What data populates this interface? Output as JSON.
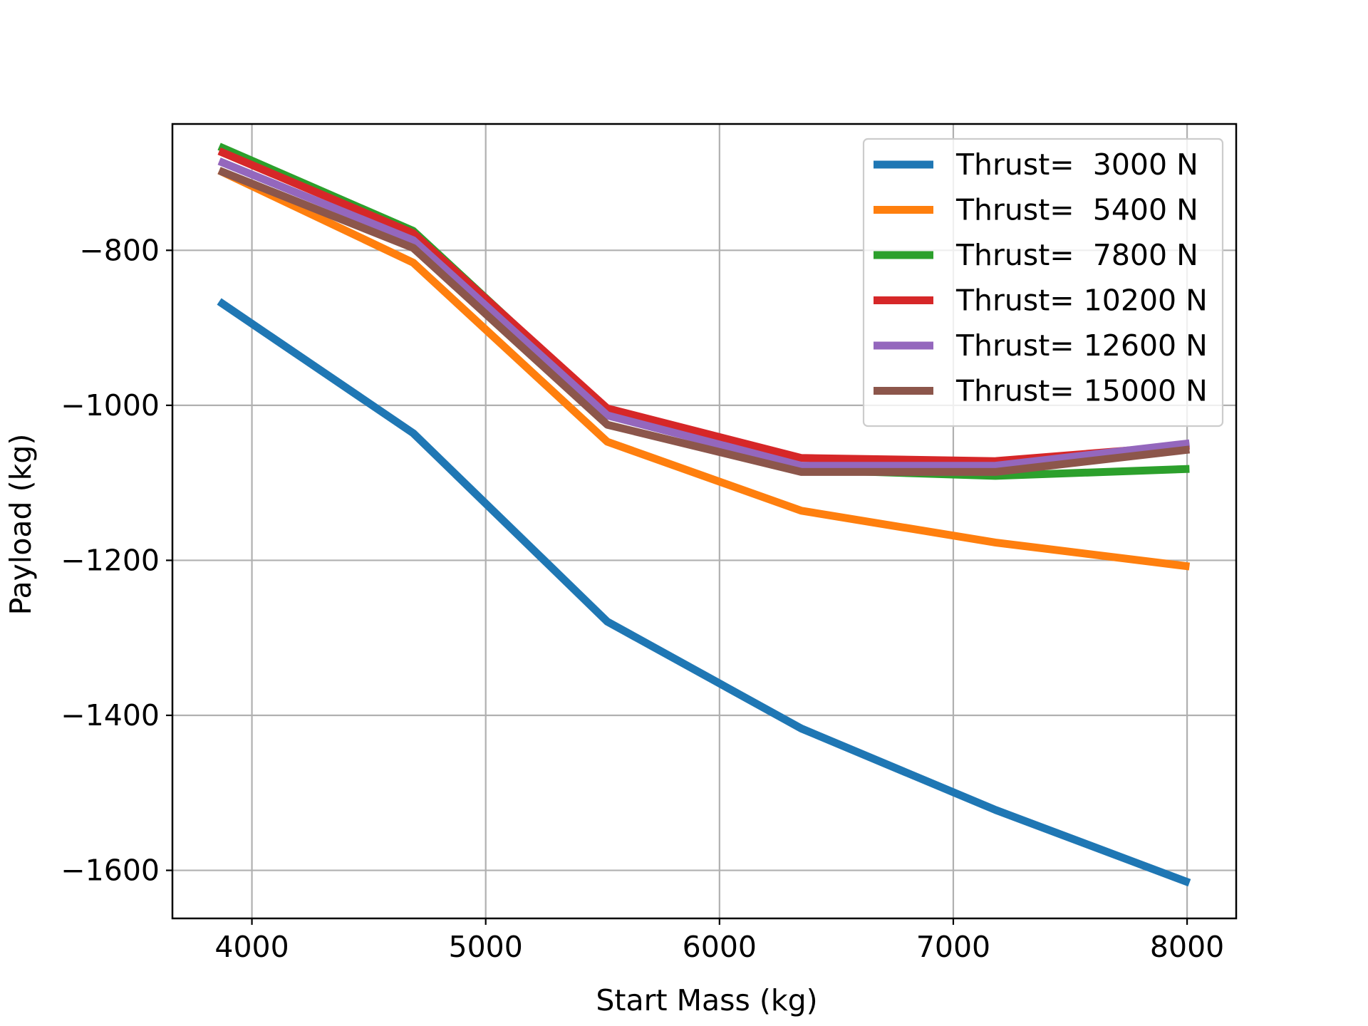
{
  "chart_data": {
    "type": "line",
    "title": "",
    "xlabel": "Start Mass (kg)",
    "ylabel": "Payload (kg)",
    "xlim": [
      3660,
      8210
    ],
    "ylim": [
      -1662,
      -637
    ],
    "xticks": [
      4000,
      5000,
      6000,
      7000,
      8000
    ],
    "yticks": [
      -800,
      -1000,
      -1200,
      -1400,
      -1600
    ],
    "ytick_labels": [
      "−800",
      "−1000",
      "−1200",
      "−1400",
      "−1600"
    ],
    "grid": true,
    "legend_position": "upper right",
    "x": [
      3860,
      4690,
      5520,
      6350,
      7180,
      8010
    ],
    "series": [
      {
        "name": "Thrust=  3000 N",
        "color": "#1f77b4",
        "values": [
          -866,
          -1036,
          -1279,
          -1417,
          -1522,
          -1616
        ]
      },
      {
        "name": "Thrust=  5400 N",
        "color": "#ff7f0e",
        "values": [
          -697,
          -816,
          -1047,
          -1136,
          -1177,
          -1208
        ]
      },
      {
        "name": "Thrust=  7800 N",
        "color": "#2ca02c",
        "values": [
          -666,
          -775,
          -1007,
          -1083,
          -1091,
          -1082
        ]
      },
      {
        "name": "Thrust= 10200 N",
        "color": "#d62728",
        "values": [
          -672,
          -778,
          -1004,
          -1068,
          -1072,
          -1052
        ]
      },
      {
        "name": "Thrust= 12600 N",
        "color": "#9467bd",
        "values": [
          -685,
          -787,
          -1013,
          -1078,
          -1078,
          -1049
        ]
      },
      {
        "name": "Thrust= 15000 N",
        "color": "#8c564b",
        "values": [
          -697,
          -797,
          -1025,
          -1086,
          -1086,
          -1057
        ]
      }
    ]
  }
}
